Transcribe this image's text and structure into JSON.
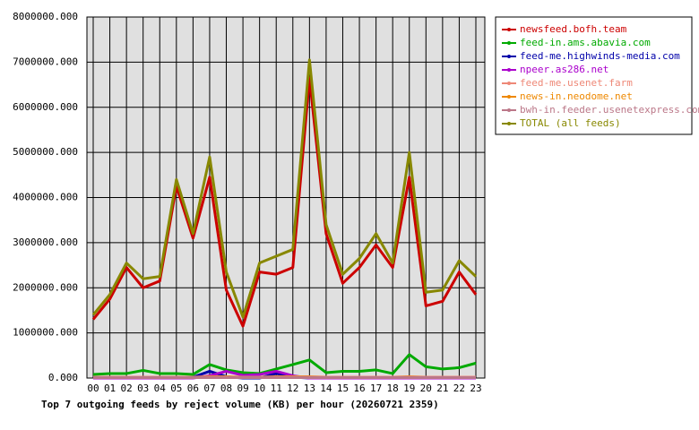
{
  "chart_data": {
    "type": "line",
    "title": "Top 7 outgoing feeds by reject volume (KB) per hour (20260721 2359)",
    "categories": [
      "00",
      "01",
      "02",
      "03",
      "04",
      "05",
      "06",
      "07",
      "08",
      "09",
      "10",
      "11",
      "12",
      "13",
      "14",
      "15",
      "16",
      "17",
      "18",
      "19",
      "20",
      "21",
      "22",
      "23"
    ],
    "ylim": [
      0,
      8000000
    ],
    "yticks": [
      {
        "value": 0,
        "label": "0.000"
      },
      {
        "value": 1000000,
        "label": "1000000.000"
      },
      {
        "value": 2000000,
        "label": "2000000.000"
      },
      {
        "value": 3000000,
        "label": "3000000.000"
      },
      {
        "value": 4000000,
        "label": "4000000.000"
      },
      {
        "value": 5000000,
        "label": "5000000.000"
      },
      {
        "value": 6000000,
        "label": "6000000.000"
      },
      {
        "value": 7000000,
        "label": "7000000.000"
      },
      {
        "value": 8000000,
        "label": "8000000.000"
      }
    ],
    "grid": true,
    "legend": "top-right",
    "series": [
      {
        "name": "newsfeed.bofh.team",
        "color": "#cc0000",
        "values": [
          1300000,
          1750000,
          2450000,
          2000000,
          2150000,
          4250000,
          3100000,
          4450000,
          1950000,
          1150000,
          2350000,
          2300000,
          2450000,
          6650000,
          3200000,
          2100000,
          2450000,
          2950000,
          2450000,
          4450000,
          1600000,
          1700000,
          2350000,
          1850000
        ]
      },
      {
        "name": "feed-in.ams.abavia.com",
        "color": "#00aa00",
        "values": [
          80000,
          100000,
          100000,
          170000,
          100000,
          100000,
          80000,
          300000,
          180000,
          120000,
          100000,
          200000,
          300000,
          400000,
          120000,
          150000,
          150000,
          180000,
          100000,
          520000,
          250000,
          200000,
          230000,
          330000
        ]
      },
      {
        "name": "feed-me.highwinds-media.com",
        "color": "#0000aa",
        "values": [
          0,
          0,
          0,
          0,
          0,
          0,
          20000,
          150000,
          30000,
          0,
          0,
          100000,
          20000,
          0,
          0,
          0,
          0,
          0,
          0,
          0,
          0,
          0,
          0,
          0
        ]
      },
      {
        "name": "npeer.as286.net",
        "color": "#aa00cc",
        "values": [
          0,
          0,
          0,
          0,
          0,
          0,
          0,
          50000,
          150000,
          60000,
          80000,
          150000,
          50000,
          0,
          0,
          0,
          0,
          0,
          0,
          0,
          0,
          0,
          0,
          0
        ]
      },
      {
        "name": "feed-me.usenet.farm",
        "color": "#ee8877",
        "values": [
          20000,
          20000,
          20000,
          20000,
          20000,
          20000,
          20000,
          30000,
          30000,
          20000,
          20000,
          30000,
          30000,
          30000,
          20000,
          20000,
          20000,
          20000,
          20000,
          30000,
          20000,
          20000,
          20000,
          20000
        ]
      },
      {
        "name": "news-in.neodome.net",
        "color": "#ee8800",
        "values": [
          10000,
          10000,
          10000,
          10000,
          10000,
          10000,
          10000,
          20000,
          20000,
          10000,
          10000,
          20000,
          20000,
          20000,
          10000,
          10000,
          10000,
          10000,
          10000,
          20000,
          10000,
          10000,
          10000,
          10000
        ]
      },
      {
        "name": "bwh-in.feeder.usenetexpress.com",
        "color": "#bb7788",
        "values": [
          10000,
          10000,
          10000,
          10000,
          10000,
          10000,
          10000,
          10000,
          10000,
          10000,
          10000,
          10000,
          10000,
          10000,
          10000,
          10000,
          10000,
          10000,
          10000,
          10000,
          10000,
          10000,
          10000,
          10000
        ]
      },
      {
        "name": "TOTAL (all feeds)",
        "color": "#888800",
        "values": [
          1400000,
          1850000,
          2550000,
          2200000,
          2250000,
          4400000,
          3200000,
          4900000,
          2350000,
          1350000,
          2550000,
          2700000,
          2850000,
          7050000,
          3400000,
          2300000,
          2650000,
          3200000,
          2550000,
          5000000,
          1900000,
          1950000,
          2600000,
          2250000
        ]
      }
    ]
  }
}
